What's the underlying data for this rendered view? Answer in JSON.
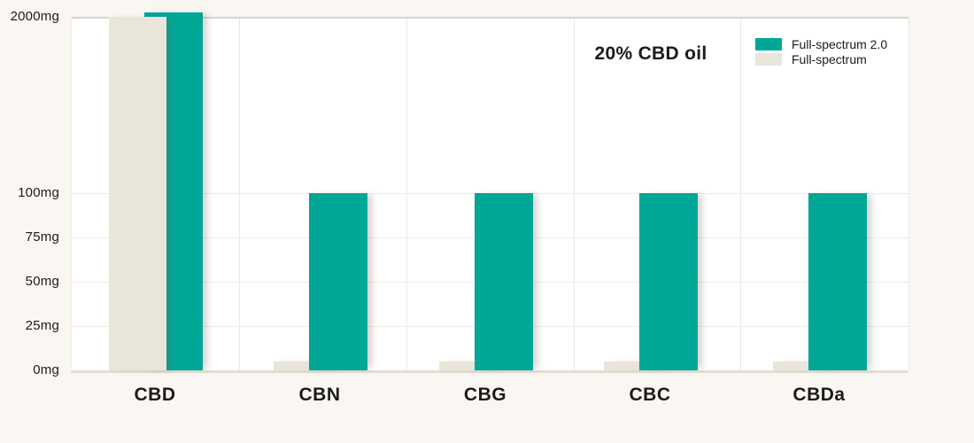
{
  "chart_data": {
    "type": "bar",
    "title": "20% CBD oil",
    "categories": [
      "CBD",
      "CBN",
      "CBG",
      "CBC",
      "CBDa"
    ],
    "series": [
      {
        "name": "Full-spectrum 2.0",
        "color": "#00a797",
        "values": [
          2000,
          100,
          100,
          100,
          100
        ]
      },
      {
        "name": "Full-spectrum",
        "color": "#e9e5d9",
        "values": [
          2000,
          5,
          5,
          5,
          5
        ]
      }
    ],
    "unit": "mg",
    "y_ticks": [
      {
        "label": "0mg",
        "value": 0
      },
      {
        "label": "25mg",
        "value": 25
      },
      {
        "label": "50mg",
        "value": 50
      },
      {
        "label": "75mg",
        "value": 75
      },
      {
        "label": "100mg",
        "value": 100
      },
      {
        "label": "2000mg",
        "value": 2000
      }
    ],
    "axis_break": {
      "between": [
        100,
        2000
      ]
    },
    "linear_region": [
      0,
      100
    ],
    "grid": true,
    "legend": {
      "position": "top-right",
      "entries": [
        "Full-spectrum 2.0",
        "Full-spectrum"
      ]
    }
  },
  "colors": {
    "accent_teal": "#00a797",
    "beige": "#e9e5d9",
    "page_background": "#faf7f2",
    "plot_background": "#ffffff",
    "gridline": "#efece6",
    "axis_line": "#e2ded4",
    "text": "#1b1b1b"
  }
}
